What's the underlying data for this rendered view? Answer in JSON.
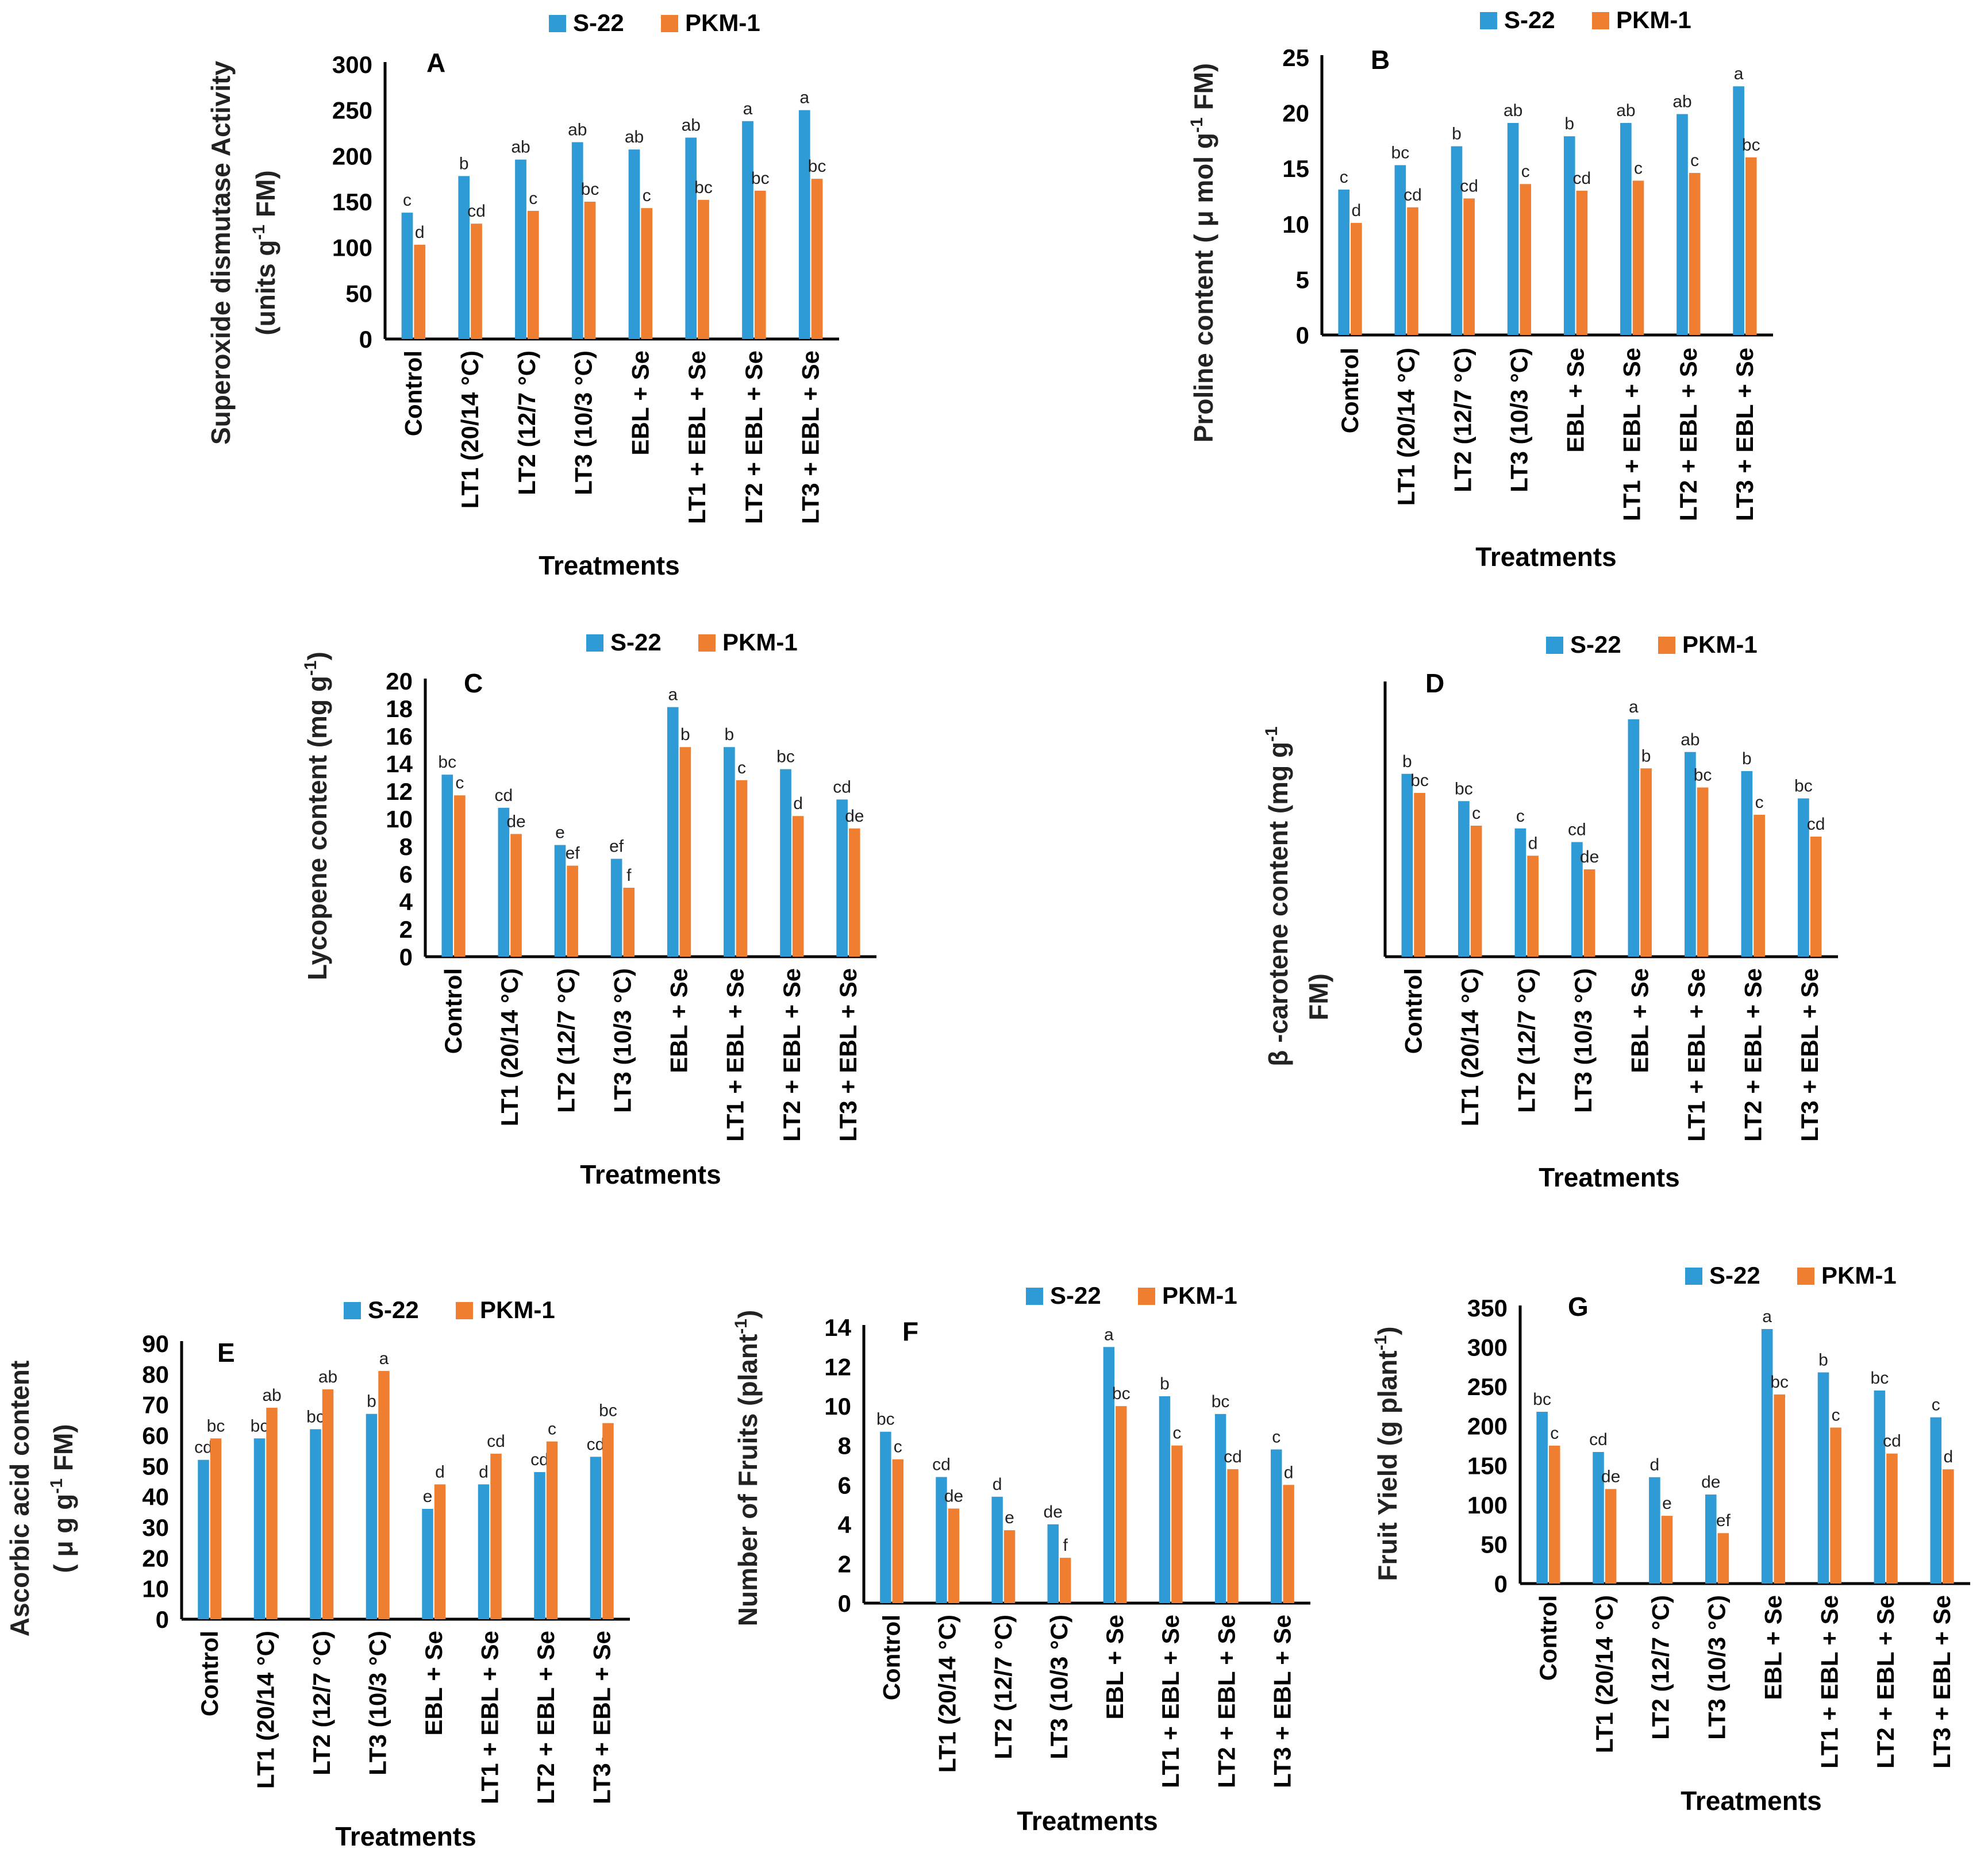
{
  "colors": {
    "s22": "#2E9AD6",
    "pkm1": "#F07E30",
    "axis": "#000000"
  },
  "chart_data": [
    {
      "id": "A",
      "type": "bar",
      "panel_label": "A",
      "title": "",
      "ylabel": "Superoxide dismutase Activity",
      "ylabel2_pre": "(units g",
      "ylabel2_sup": "-1",
      "ylabel2_post": " FM)",
      "xlabel": "Treatments",
      "categories": [
        "Control",
        "LT1 (20/14 °C)",
        "LT2 (12/7 °C)",
        "LT3 (10/3 °C)",
        "EBL + Se",
        "LT1 + EBL + Se",
        "LT2 + EBL + Se",
        "LT3 + EBL + Se"
      ],
      "ylim": [
        0,
        300
      ],
      "ticks": [
        0,
        50,
        100,
        150,
        200,
        250,
        300
      ],
      "legend": [
        "S-22",
        "PKM-1"
      ],
      "series": [
        {
          "name": "S-22",
          "values": [
            138,
            178,
            196,
            215,
            207,
            220,
            238,
            250
          ],
          "letters": [
            "c",
            "b",
            "ab",
            "ab",
            "ab",
            "ab",
            "a",
            "a"
          ]
        },
        {
          "name": "PKM-1",
          "values": [
            103,
            126,
            140,
            150,
            143,
            152,
            162,
            175
          ],
          "letters": [
            "d",
            "cd",
            "c",
            "bc",
            "c",
            "bc",
            "bc",
            "bc"
          ]
        }
      ]
    },
    {
      "id": "B",
      "type": "bar",
      "panel_label": "B",
      "title": "",
      "ylabel": "",
      "ylabel2_pre": "Proline content ( μ mol g",
      "ylabel2_sup": "-1",
      "ylabel2_post": " FM)",
      "xlabel": "Treatments",
      "categories": [
        "Control",
        "LT1 (20/14 °C)",
        "LT2 (12/7 °C)",
        "LT3 (10/3 °C)",
        "EBL + Se",
        "LT1 + EBL + Se",
        "LT2 + EBL + Se",
        "LT3 + EBL + Se"
      ],
      "ylim": [
        0,
        25
      ],
      "ticks": [
        0,
        5,
        10,
        15,
        20,
        25
      ],
      "legend": [
        "S-22",
        "PKM-1"
      ],
      "series": [
        {
          "name": "S-22",
          "values": [
            13.1,
            15.3,
            17.0,
            19.1,
            17.9,
            19.1,
            19.9,
            22.4
          ],
          "letters": [
            "c",
            "bc",
            "b",
            "ab",
            "b",
            "ab",
            "ab",
            "a"
          ]
        },
        {
          "name": "PKM-1",
          "values": [
            10.1,
            11.5,
            12.3,
            13.6,
            13.0,
            13.9,
            14.6,
            16.0
          ],
          "letters": [
            "d",
            "cd",
            "cd",
            "c",
            "cd",
            "c",
            "c",
            "bc"
          ]
        }
      ]
    },
    {
      "id": "C",
      "type": "bar",
      "panel_label": "C",
      "title": "",
      "ylabel": "",
      "ylabel2_pre": "Lycopene content (mg g",
      "ylabel2_sup": "-1",
      "ylabel2_post": ")",
      "xlabel": "Treatments",
      "categories": [
        "Control",
        "LT1 (20/14 °C)",
        "LT2 (12/7 °C)",
        "LT3 (10/3 °C)",
        "EBL + Se",
        "LT1 + EBL + Se",
        "LT2 + EBL + Se",
        "LT3 + EBL + Se"
      ],
      "ylim": [
        0,
        20
      ],
      "ticks": [
        0,
        2,
        4,
        6,
        8,
        10,
        12,
        14,
        16,
        18,
        20
      ],
      "legend": [
        "S-22",
        "PKM-1"
      ],
      "series": [
        {
          "name": "S-22",
          "values": [
            13.2,
            10.8,
            8.1,
            7.1,
            18.1,
            15.2,
            13.6,
            11.4
          ],
          "letters": [
            "bc",
            "cd",
            "e",
            "ef",
            "a",
            "b",
            "bc",
            "cd"
          ]
        },
        {
          "name": "PKM-1",
          "values": [
            11.7,
            8.9,
            6.6,
            5.0,
            15.2,
            12.8,
            10.2,
            9.3
          ],
          "letters": [
            "c",
            "de",
            "ef",
            "f",
            "b",
            "c",
            "d",
            "de"
          ]
        }
      ]
    },
    {
      "id": "D",
      "type": "bar",
      "panel_label": "D",
      "title": "",
      "ylabel": "β -carotene content (mg g",
      "ylabel_sup": "-1",
      "ylabel2_pre": "FM)",
      "ylabel2_sup": "",
      "ylabel2_post": "",
      "xlabel": "Treatments",
      "categories": [
        "Control",
        "LT1 (20/14 °C)",
        "LT2 (12/7 °C)",
        "LT3 (10/3 °C)",
        "EBL + Se",
        "LT1 + EBL + Se",
        "LT2 + EBL + Se",
        "LT3 + EBL + Se"
      ],
      "ylim": [
        0,
        10
      ],
      "ticks": [],
      "legend": [
        "S-22",
        "PKM-1"
      ],
      "series": [
        {
          "name": "S-22",
          "values": [
            6.7,
            5.7,
            4.7,
            4.2,
            8.7,
            7.5,
            6.8,
            5.8
          ],
          "letters": [
            "b",
            "bc",
            "c",
            "cd",
            "a",
            "ab",
            "b",
            "bc"
          ]
        },
        {
          "name": "PKM-1",
          "values": [
            6.0,
            4.8,
            3.7,
            3.2,
            6.9,
            6.2,
            5.2,
            4.4
          ],
          "letters": [
            "bc",
            "c",
            "d",
            "de",
            "b",
            "bc",
            "c",
            "cd"
          ]
        }
      ]
    },
    {
      "id": "E",
      "type": "bar",
      "panel_label": "E",
      "title": "",
      "ylabel": "Ascorbic acid content",
      "ylabel2_pre": "( μ g g",
      "ylabel2_sup": "-1",
      "ylabel2_post": " FM)",
      "xlabel": "Treatments",
      "categories": [
        "Control",
        "LT1 (20/14 °C)",
        "LT2 (12/7 °C)",
        "LT3 (10/3 °C)",
        "EBL + Se",
        "LT1 + EBL + Se",
        "LT2 + EBL + Se",
        "LT3 + EBL + Se"
      ],
      "ylim": [
        0,
        90
      ],
      "ticks": [
        0,
        10,
        20,
        30,
        40,
        50,
        60,
        70,
        80,
        90
      ],
      "legend": [
        "S-22",
        "PKM-1"
      ],
      "series": [
        {
          "name": "S-22",
          "values": [
            52,
            59,
            62,
            67,
            36,
            44,
            48,
            53
          ],
          "letters": [
            "cd",
            "bc",
            "bc",
            "b",
            "e",
            "d",
            "cd",
            "cd"
          ]
        },
        {
          "name": "PKM-1",
          "values": [
            59,
            69,
            75,
            81,
            44,
            54,
            58,
            64
          ],
          "letters": [
            "bc",
            "ab",
            "ab",
            "a",
            "d",
            "cd",
            "c",
            "bc"
          ]
        }
      ]
    },
    {
      "id": "F",
      "type": "bar",
      "panel_label": "F",
      "title": "",
      "ylabel": "",
      "ylabel2_pre": "Number of Fruits (plant",
      "ylabel2_sup": "-1",
      "ylabel2_post": ")",
      "xlabel": "Treatments",
      "categories": [
        "Control",
        "LT1 (20/14 °C)",
        "LT2 (12/7 °C)",
        "LT3 (10/3 °C)",
        "EBL + Se",
        "LT1 + EBL + Se",
        "LT2 + EBL + Se",
        "LT3 + EBL + Se"
      ],
      "ylim": [
        0,
        14
      ],
      "ticks": [
        0,
        2,
        4,
        6,
        8,
        10,
        12,
        14
      ],
      "legend": [
        "S-22",
        "PKM-1"
      ],
      "series": [
        {
          "name": "S-22",
          "values": [
            8.7,
            6.4,
            5.4,
            4.0,
            13.0,
            10.5,
            9.6,
            7.8
          ],
          "letters": [
            "bc",
            "cd",
            "d",
            "de",
            "a",
            "b",
            "bc",
            "c"
          ]
        },
        {
          "name": "PKM-1",
          "values": [
            7.3,
            4.8,
            3.7,
            2.3,
            10.0,
            8.0,
            6.8,
            6.0
          ],
          "letters": [
            "c",
            "de",
            "e",
            "f",
            "bc",
            "c",
            "cd",
            "d"
          ]
        }
      ]
    },
    {
      "id": "G",
      "type": "bar",
      "panel_label": "G",
      "title": "",
      "ylabel": "",
      "ylabel2_pre": "Fruit Yield (g plant",
      "ylabel2_sup": "-1",
      "ylabel2_post": ")",
      "xlabel": "Treatments",
      "categories": [
        "Control",
        "LT1 (20/14 °C)",
        "LT2 (12/7 °C)",
        "LT3 (10/3 °C)",
        "EBL + Se",
        "LT1 + EBL + Se",
        "LT2 + EBL + Se",
        "LT3 + EBL + Se"
      ],
      "ylim": [
        0,
        350
      ],
      "ticks": [
        0,
        50,
        100,
        150,
        200,
        250,
        300,
        350
      ],
      "legend": [
        "S-22",
        "PKM-1"
      ],
      "series": [
        {
          "name": "S-22",
          "values": [
            218,
            167,
            135,
            113,
            323,
            268,
            245,
            211
          ],
          "letters": [
            "bc",
            "cd",
            "d",
            "de",
            "a",
            "b",
            "bc",
            "c"
          ]
        },
        {
          "name": "PKM-1",
          "values": [
            175,
            120,
            86,
            64,
            240,
            198,
            165,
            145
          ],
          "letters": [
            "c",
            "de",
            "e",
            "ef",
            "bc",
            "c",
            "cd",
            "d"
          ]
        }
      ]
    }
  ]
}
